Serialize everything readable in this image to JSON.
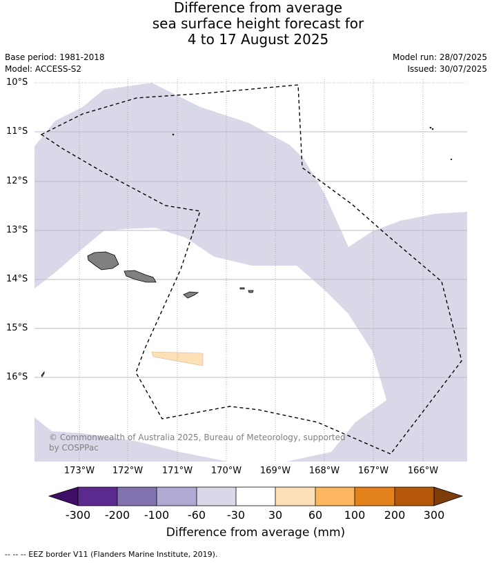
{
  "title": {
    "line1": "Difference from average",
    "line2": "sea surface height forecast for",
    "line3": "4 to 17 August 2025"
  },
  "meta": {
    "base_period": "Base period: 1981-2018",
    "model": "Model: ACCESS-S2",
    "model_run": "Model run: 28/07/2025",
    "issued": "Issued: 30/07/2025"
  },
  "map": {
    "longitude_labels": [
      "173°W",
      "172°W",
      "171°W",
      "170°W",
      "169°W",
      "168°W",
      "167°W",
      "166°W"
    ],
    "latitude_labels": [
      "10°S",
      "11°S",
      "12°S",
      "13°S",
      "14°S",
      "15°S",
      "16°S"
    ],
    "copyright_line1": "© Commonwealth of Australia 2025, Bureau of Meteorology, supported",
    "copyright_line2": "by COSPPac",
    "colors": {
      "ocean_neutral": "#ffffff",
      "neg_30_60": "#d8d8e9",
      "pos_30_60": "#fde0b7",
      "land": "#808080",
      "grid": "#999999"
    }
  },
  "colorbar": {
    "title": "Difference from average (mm)",
    "ticks": [
      "-300",
      "-200",
      "-100",
      "-60",
      "-30",
      "30",
      "60",
      "100",
      "200",
      "300"
    ],
    "colors": [
      "#3f0e66",
      "#5a2a8e",
      "#8273b0",
      "#b0a9d2",
      "#d8d8e9",
      "#ffffff",
      "#fde0b7",
      "#fbb65f",
      "#e3821c",
      "#b55708",
      "#7e3c08"
    ]
  },
  "footnote": "--  --  -- EEZ border V11 (Flanders Marine Institute, 2019)."
}
